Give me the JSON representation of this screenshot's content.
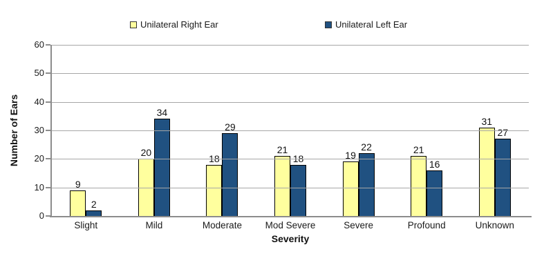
{
  "chart_data": {
    "type": "bar",
    "title": "",
    "categories": [
      "Slight",
      "Mild",
      "Moderate",
      "Mod Severe",
      "Severe",
      "Profound",
      "Unknown"
    ],
    "series": [
      {
        "name": "Unilateral Right Ear",
        "color": "#FFFF9E",
        "values": [
          9,
          20,
          18,
          21,
          19,
          21,
          31
        ]
      },
      {
        "name": "Unilateral Left Ear",
        "color": "#205181",
        "values": [
          2,
          34,
          29,
          18,
          22,
          16,
          27
        ]
      }
    ],
    "xlabel": "Severity",
    "ylabel": "Number of Ears",
    "ylim": [
      0,
      60
    ],
    "yticks": [
      0,
      10,
      20,
      30,
      40,
      50,
      60
    ],
    "grid": true,
    "legend_position": "top",
    "value_labels": true
  },
  "colors": {
    "gridline": "#a6a6a6",
    "axis": "#8c8c8c",
    "bar_border": "#000000",
    "text": "#1a1a1a"
  }
}
